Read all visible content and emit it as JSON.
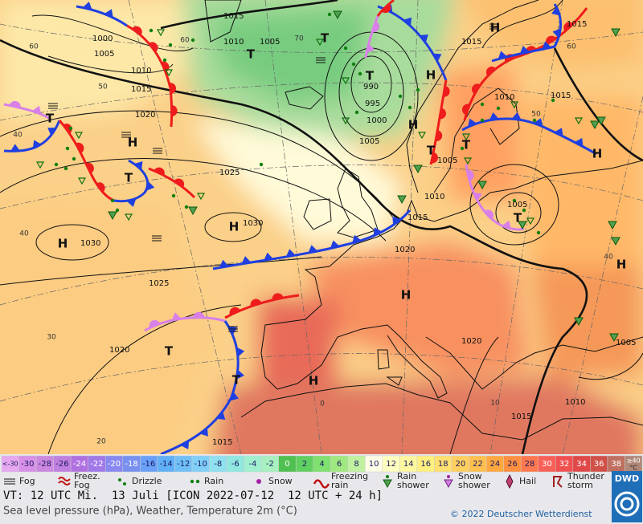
{
  "map": {
    "isobar_labels": [
      1015,
      1000,
      1005,
      1010,
      1005,
      1010,
      1015,
      1020,
      1025,
      1030,
      1030,
      1025,
      1020,
      1015,
      990,
      995,
      1000,
      1005,
      1015,
      1010,
      1015,
      1005,
      1010,
      1015,
      1020,
      1005,
      1020,
      1015,
      1010,
      1005,
      1015
    ],
    "pressure_centers": [
      "T",
      "T",
      "T",
      "H",
      "H",
      "T",
      "T",
      "H",
      "H",
      "T",
      "H",
      "T",
      "H",
      "H",
      "T",
      "H",
      "H",
      "T",
      "T",
      "H"
    ],
    "graticule_labels": [
      60,
      50,
      40,
      40,
      30,
      20,
      60,
      70,
      60,
      50,
      40,
      0,
      10
    ]
  },
  "scale": {
    "labels": [
      "<-30",
      -30,
      -28,
      -26,
      -24,
      -22,
      -20,
      -18,
      -16,
      -14,
      -12,
      -10,
      -8,
      -6,
      -4,
      -2,
      0,
      2,
      4,
      6,
      8,
      10,
      12,
      14,
      16,
      18,
      20,
      22,
      24,
      26,
      28,
      30,
      32,
      34,
      36,
      38,
      "≥40"
    ],
    "unit": "°C",
    "colors": [
      "#e6a8f0",
      "#d890e8",
      "#cc88e0",
      "#c080e0",
      "#b070e0",
      "#a078e8",
      "#8888f0",
      "#7890f0",
      "#6aa0f8",
      "#60b0f8",
      "#70c0f8",
      "#80d0f8",
      "#90e0f0",
      "#90e8e0",
      "#a0f0d0",
      "#a8f0c0",
      "#50c050",
      "#60d060",
      "#80e070",
      "#a0e880",
      "#c0f0a0",
      "#ffffe8",
      "#ffffc0",
      "#fff8a0",
      "#fff080",
      "#ffe070",
      "#ffd060",
      "#ffc050",
      "#ffa840",
      "#ff9040",
      "#ff7850",
      "#f86058",
      "#f05050",
      "#e04848",
      "#d05048",
      "#c07060",
      "#b08878"
    ]
  },
  "weather_legend": [
    {
      "lines": [
        "Fog"
      ]
    },
    {
      "lines": [
        "Freez.",
        "Fog"
      ]
    },
    {
      "lines": [
        "Drizzle"
      ]
    },
    {
      "lines": [
        "Rain"
      ]
    },
    {
      "lines": [
        "Snow"
      ]
    },
    {
      "lines": [
        "Freezing",
        "rain"
      ]
    },
    {
      "lines": [
        "Rain",
        "shower"
      ]
    },
    {
      "lines": [
        "Snow",
        "shower"
      ]
    },
    {
      "lines": [
        "Hail"
      ]
    },
    {
      "lines": [
        "Thunder",
        "storm"
      ]
    }
  ],
  "logo": "DWD",
  "footer": {
    "valid_time": "VT: 12 UTC Mi.  13 Juli [ICON 2022-07-12  12 UTC + 24 h]",
    "description": "Sea level pressure (hPa), Weather, Temperature 2m (°C)",
    "copyright": "© 2022 Deutscher Wetterdienst"
  }
}
